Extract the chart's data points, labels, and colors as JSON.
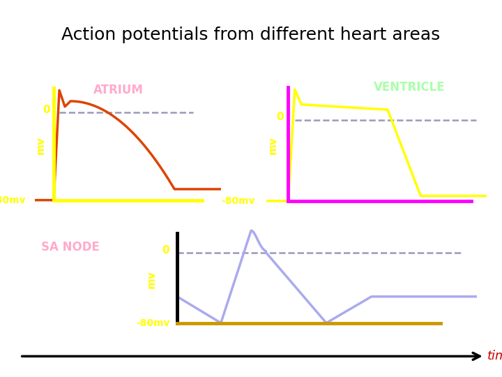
{
  "title": "Action potentials from different heart areas",
  "title_fontsize": 18,
  "background_color": "#ffffff",
  "atrium_label": "ATRIUM",
  "atrium_label_color": "#ffaacc",
  "ventricle_label": "VENTRICLE",
  "ventricle_label_color": "#aaffaa",
  "sa_node_label": "SA NODE",
  "sa_node_label_color": "#ffaacc",
  "zero_label": "0",
  "minus80_label": "-80mv",
  "mv_label": "mv",
  "time_label": "time",
  "time_label_color": "#cc0000",
  "axis_color_yellow": "#ffff00",
  "axis_color_magenta": "#ff00ff",
  "axis_color_gold": "#cc9900",
  "axis_color_black": "#000000",
  "dashed_color": "#9999bb",
  "atrium_waveform_color": "#dd4400",
  "ventricle_waveform_color": "#ffff00",
  "sa_waveform_color": "#aaaaee"
}
